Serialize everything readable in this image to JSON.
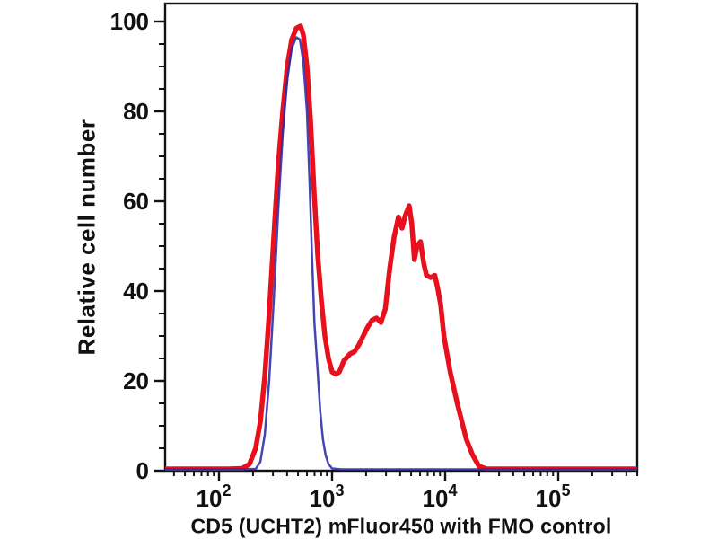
{
  "title": "CD5 (UCHT2) mFluor450 with FMO control",
  "ylabel": "Relative cell number",
  "chart_data": {
    "type": "line",
    "subtype": "flow-cytometry-histogram-overlay",
    "x_scale": "log",
    "x_range": [
      33,
      500000
    ],
    "y_range": [
      0,
      104
    ],
    "grid": false,
    "legend": "none",
    "axis_color": "#111111",
    "x_major_ticks": [
      {
        "value": 100,
        "base": "10",
        "exp": "2"
      },
      {
        "value": 1000,
        "base": "10",
        "exp": "3"
      },
      {
        "value": 10000,
        "base": "10",
        "exp": "4"
      },
      {
        "value": 100000,
        "base": "10",
        "exp": "5"
      }
    ],
    "y_major_ticks": [
      {
        "value": 0,
        "label": "0"
      },
      {
        "value": 20,
        "label": "20"
      },
      {
        "value": 40,
        "label": "40"
      },
      {
        "value": 60,
        "label": "60"
      },
      {
        "value": 80,
        "label": "80"
      },
      {
        "value": 100,
        "label": "100"
      }
    ],
    "y_minor_step": 5,
    "series": [
      {
        "name": "CD5 (UCHT2) mFluor450",
        "color": "#e8101c",
        "stroke_width": 5.5,
        "points": [
          [
            33,
            0.4
          ],
          [
            120,
            0.4
          ],
          [
            161,
            0.5
          ],
          [
            186,
            1.5
          ],
          [
            211,
            5
          ],
          [
            232,
            11
          ],
          [
            254,
            21
          ],
          [
            278,
            35
          ],
          [
            305,
            52
          ],
          [
            334,
            68
          ],
          [
            366,
            80
          ],
          [
            401,
            90
          ],
          [
            439,
            96
          ],
          [
            482,
            98.5
          ],
          [
            527,
            99
          ],
          [
            557,
            97
          ],
          [
            599,
            90
          ],
          [
            645,
            78
          ],
          [
            694,
            62
          ],
          [
            746,
            48
          ],
          [
            803,
            38
          ],
          [
            864,
            30
          ],
          [
            929,
            25
          ],
          [
            1000,
            22
          ],
          [
            1077,
            21.5
          ],
          [
            1159,
            22
          ],
          [
            1272,
            24.5
          ],
          [
            1442,
            26
          ],
          [
            1577,
            26.5
          ],
          [
            1725,
            28
          ],
          [
            1887,
            30
          ],
          [
            2064,
            32
          ],
          [
            2257,
            33.5
          ],
          [
            2469,
            34
          ],
          [
            2700,
            33
          ],
          [
            2953,
            36
          ],
          [
            3230,
            45
          ],
          [
            3533,
            52
          ],
          [
            3864,
            56.5
          ],
          [
            4155,
            54
          ],
          [
            4468,
            57
          ],
          [
            4804,
            59
          ],
          [
            5068,
            55
          ],
          [
            5347,
            47
          ],
          [
            5640,
            50
          ],
          [
            6050,
            51
          ],
          [
            6489,
            46
          ],
          [
            6836,
            43.5
          ],
          [
            7445,
            43
          ],
          [
            8108,
            43.5
          ],
          [
            8530,
            41
          ],
          [
            9122,
            37
          ],
          [
            9755,
            30
          ],
          [
            11070,
            22
          ],
          [
            12800,
            15
          ],
          [
            15400,
            7
          ],
          [
            17500,
            3.5
          ],
          [
            19900,
            1
          ],
          [
            23200,
            0.4
          ],
          [
            60000,
            0.4
          ],
          [
            500000,
            0.4
          ]
        ]
      },
      {
        "name": "FMO control",
        "color": "#2b2ba6",
        "stroke_width": 2.5,
        "points": [
          [
            33,
            0.3
          ],
          [
            150,
            0.3
          ],
          [
            211,
            0.4
          ],
          [
            232,
            2
          ],
          [
            254,
            8
          ],
          [
            278,
            20
          ],
          [
            305,
            38
          ],
          [
            334,
            58
          ],
          [
            366,
            75
          ],
          [
            401,
            87
          ],
          [
            439,
            94
          ],
          [
            482,
            96.5
          ],
          [
            520,
            96
          ],
          [
            557,
            91
          ],
          [
            599,
            80
          ],
          [
            631,
            65
          ],
          [
            664,
            48
          ],
          [
            698,
            33
          ],
          [
            746,
            22
          ],
          [
            787,
            13
          ],
          [
            830,
            7
          ],
          [
            876,
            3.5
          ],
          [
            929,
            1.5
          ],
          [
            1000,
            0.5
          ],
          [
            1213,
            0.3
          ],
          [
            60000,
            0.3
          ],
          [
            500000,
            0.3
          ]
        ]
      }
    ]
  }
}
